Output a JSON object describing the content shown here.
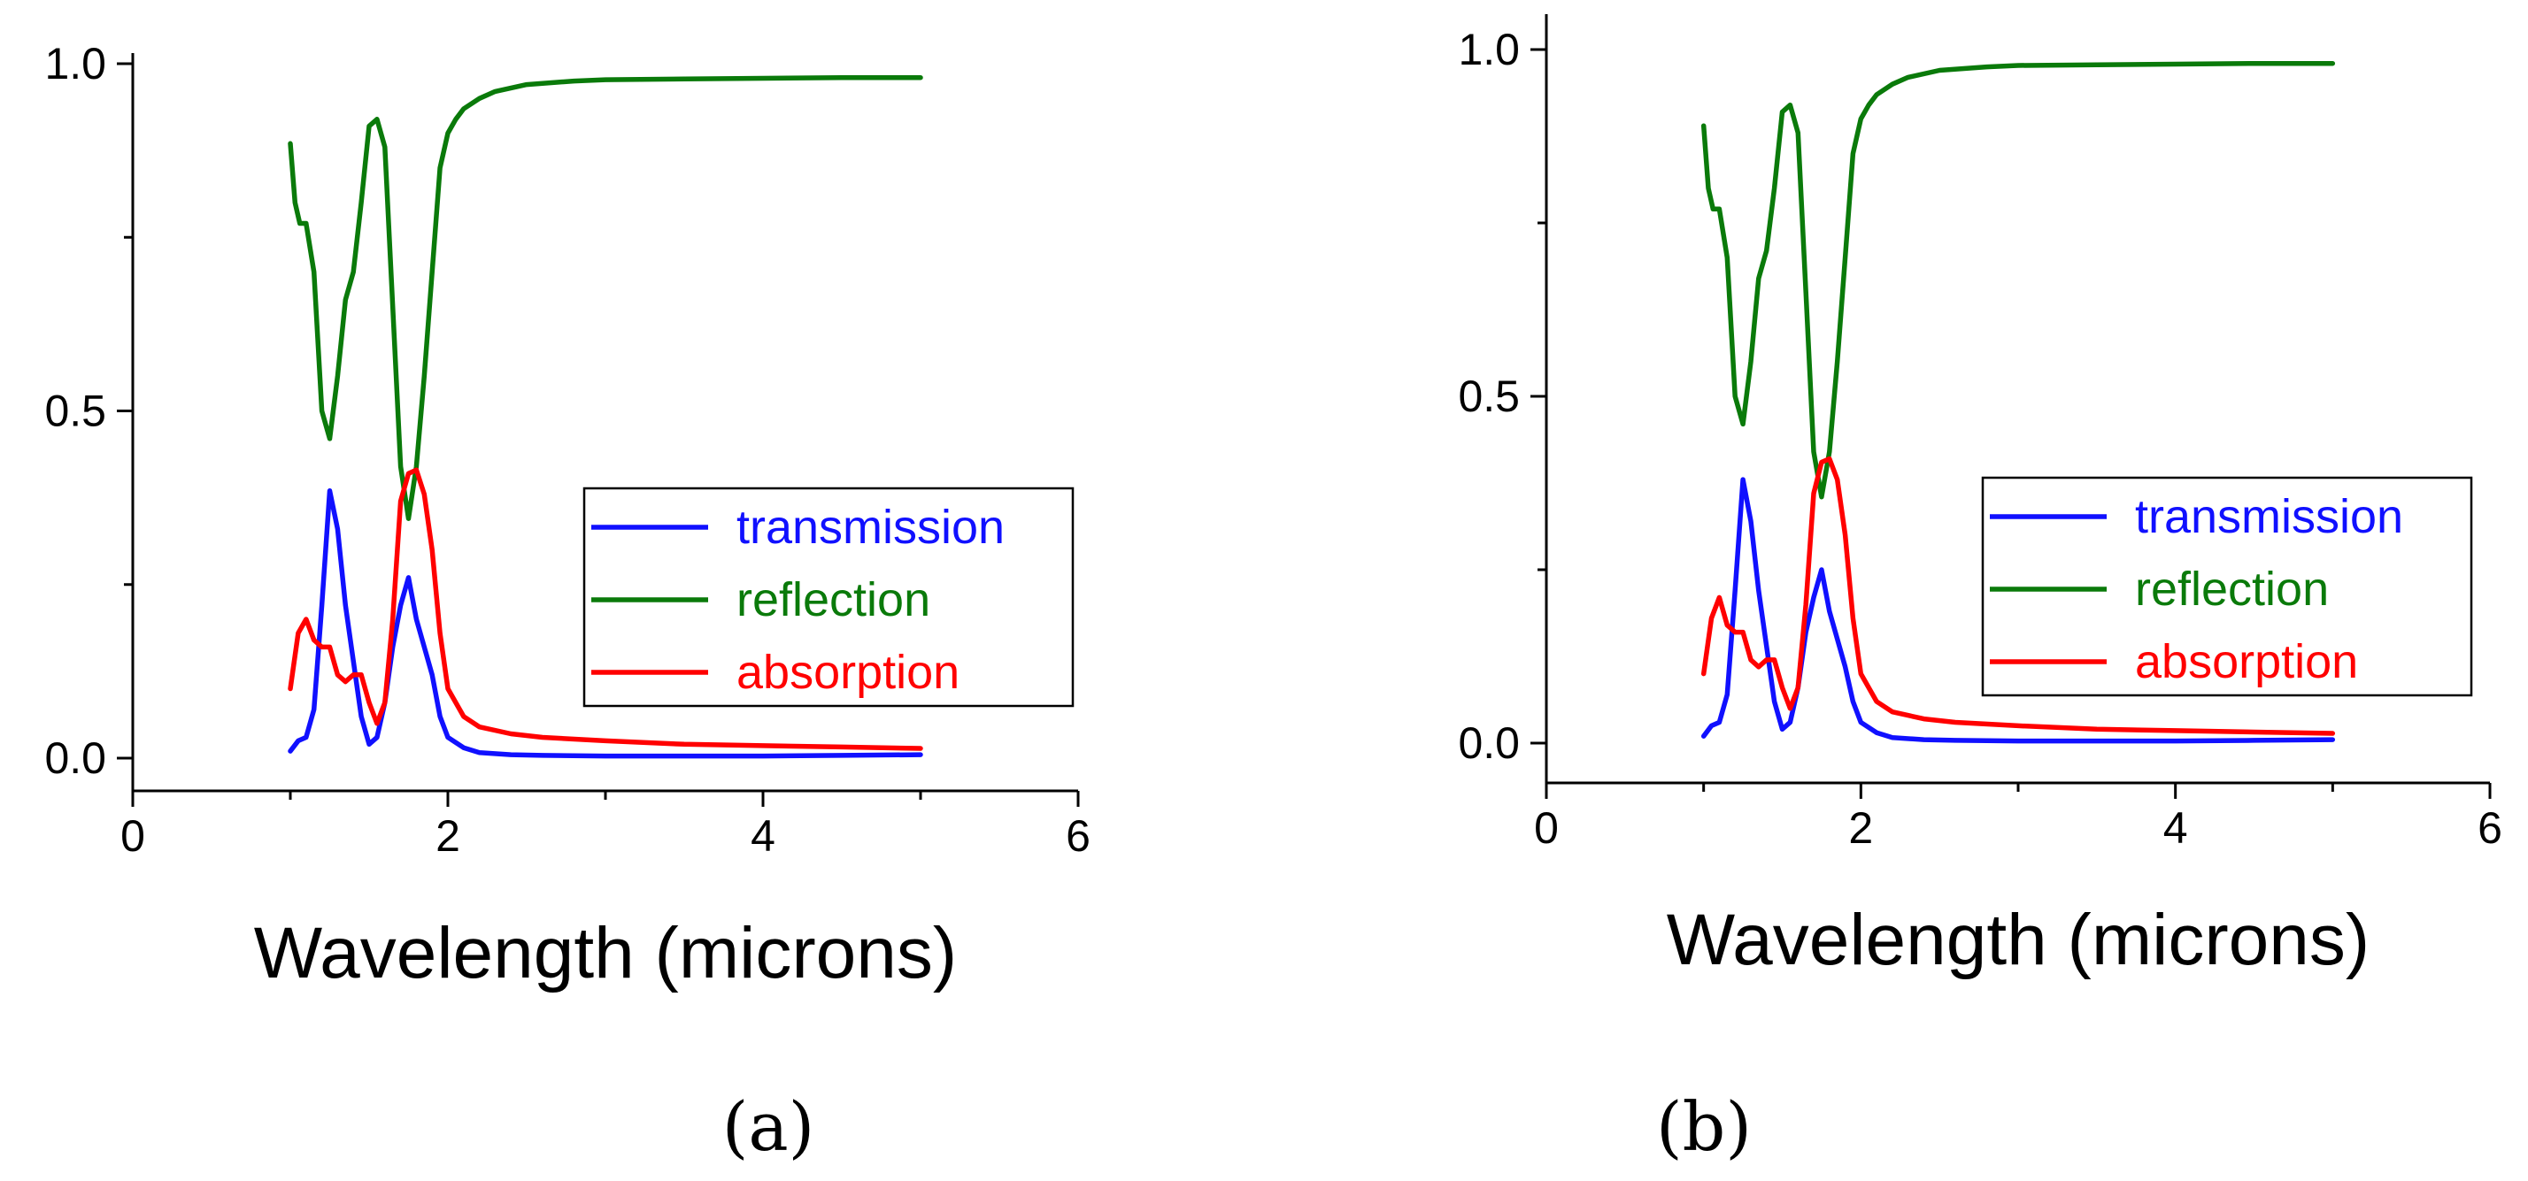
{
  "colors": {
    "transmission": "#1010ff",
    "reflection": "#0a7a0a",
    "absorption": "#ff0000",
    "axis": "#000000"
  },
  "chart_data": [
    {
      "type": "line",
      "panel_label": "(a)",
      "xlabel": "Wavelength (microns)",
      "ylabel": "",
      "xlim": [
        0,
        6
      ],
      "ylim": [
        -0.05,
        1.05
      ],
      "xticks": [
        0,
        2,
        4,
        6
      ],
      "xtick_labels": [
        "0",
        "2",
        "4",
        "6"
      ],
      "yticks": [
        0.0,
        0.5,
        1.0
      ],
      "ytick_labels": [
        "0.0",
        "0.5",
        "1.0"
      ],
      "grid": false,
      "legend_position": "right-middle",
      "series": [
        {
          "name": "transmission",
          "color": "#1010ff",
          "x": [
            1.0,
            1.05,
            1.1,
            1.15,
            1.2,
            1.25,
            1.3,
            1.35,
            1.4,
            1.45,
            1.5,
            1.55,
            1.6,
            1.65,
            1.7,
            1.75,
            1.8,
            1.85,
            1.9,
            1.95,
            2.0,
            2.1,
            2.2,
            2.4,
            2.6,
            3.0,
            3.5,
            4.0,
            4.5,
            5.0
          ],
          "y": [
            0.01,
            0.025,
            0.03,
            0.07,
            0.22,
            0.385,
            0.33,
            0.22,
            0.14,
            0.06,
            0.02,
            0.03,
            0.08,
            0.16,
            0.22,
            0.26,
            0.2,
            0.16,
            0.12,
            0.06,
            0.03,
            0.015,
            0.008,
            0.005,
            0.004,
            0.003,
            0.003,
            0.003,
            0.004,
            0.005
          ]
        },
        {
          "name": "reflection",
          "color": "#0a7a0a",
          "x": [
            1.0,
            1.03,
            1.06,
            1.1,
            1.15,
            1.2,
            1.25,
            1.3,
            1.35,
            1.4,
            1.45,
            1.5,
            1.55,
            1.6,
            1.65,
            1.7,
            1.75,
            1.8,
            1.85,
            1.9,
            1.95,
            2.0,
            2.05,
            2.1,
            2.2,
            2.3,
            2.5,
            2.8,
            3.0,
            3.5,
            4.0,
            4.5,
            5.0
          ],
          "y": [
            0.885,
            0.8,
            0.77,
            0.77,
            0.7,
            0.5,
            0.46,
            0.55,
            0.66,
            0.7,
            0.8,
            0.91,
            0.92,
            0.88,
            0.65,
            0.42,
            0.345,
            0.42,
            0.55,
            0.7,
            0.85,
            0.9,
            0.92,
            0.935,
            0.95,
            0.96,
            0.97,
            0.975,
            0.977,
            0.978,
            0.979,
            0.98,
            0.98
          ]
        },
        {
          "name": "absorption",
          "color": "#ff0000",
          "x": [
            1.0,
            1.05,
            1.1,
            1.15,
            1.2,
            1.25,
            1.3,
            1.35,
            1.4,
            1.45,
            1.5,
            1.55,
            1.6,
            1.65,
            1.7,
            1.75,
            1.8,
            1.85,
            1.9,
            1.95,
            2.0,
            2.1,
            2.2,
            2.4,
            2.6,
            3.0,
            3.5,
            4.0,
            4.5,
            5.0
          ],
          "y": [
            0.1,
            0.18,
            0.2,
            0.17,
            0.16,
            0.16,
            0.12,
            0.11,
            0.12,
            0.12,
            0.08,
            0.05,
            0.08,
            0.2,
            0.37,
            0.41,
            0.415,
            0.38,
            0.3,
            0.18,
            0.1,
            0.06,
            0.045,
            0.035,
            0.03,
            0.025,
            0.02,
            0.018,
            0.016,
            0.014
          ]
        }
      ]
    },
    {
      "type": "line",
      "panel_label": "(b)",
      "xlabel": "Wavelength (microns)",
      "ylabel": "",
      "xlim": [
        0,
        6
      ],
      "ylim": [
        -0.05,
        1.05
      ],
      "xticks": [
        0,
        2,
        4,
        6
      ],
      "xtick_labels": [
        "0",
        "2",
        "4",
        "6"
      ],
      "yticks": [
        0.0,
        0.5,
        1.0
      ],
      "ytick_labels": [
        "0.0",
        "0.5",
        "1.0"
      ],
      "grid": false,
      "legend_position": "right-middle",
      "series": [
        {
          "name": "transmission",
          "color": "#1010ff",
          "x": [
            1.0,
            1.05,
            1.1,
            1.15,
            1.2,
            1.25,
            1.3,
            1.35,
            1.4,
            1.45,
            1.5,
            1.55,
            1.6,
            1.65,
            1.7,
            1.75,
            1.8,
            1.85,
            1.9,
            1.95,
            2.0,
            2.1,
            2.2,
            2.4,
            2.6,
            3.0,
            3.5,
            4.0,
            4.5,
            5.0
          ],
          "y": [
            0.01,
            0.025,
            0.03,
            0.07,
            0.22,
            0.38,
            0.32,
            0.22,
            0.14,
            0.06,
            0.02,
            0.03,
            0.08,
            0.16,
            0.21,
            0.25,
            0.19,
            0.15,
            0.11,
            0.06,
            0.03,
            0.015,
            0.008,
            0.005,
            0.004,
            0.003,
            0.003,
            0.003,
            0.004,
            0.005
          ]
        },
        {
          "name": "reflection",
          "color": "#0a7a0a",
          "x": [
            1.0,
            1.03,
            1.06,
            1.1,
            1.15,
            1.2,
            1.25,
            1.3,
            1.35,
            1.4,
            1.45,
            1.5,
            1.55,
            1.6,
            1.65,
            1.7,
            1.75,
            1.8,
            1.85,
            1.9,
            1.95,
            2.0,
            2.05,
            2.1,
            2.2,
            2.3,
            2.5,
            2.8,
            3.0,
            3.5,
            4.0,
            4.5,
            5.0
          ],
          "y": [
            0.89,
            0.8,
            0.77,
            0.77,
            0.7,
            0.5,
            0.46,
            0.55,
            0.67,
            0.71,
            0.8,
            0.91,
            0.92,
            0.88,
            0.65,
            0.42,
            0.355,
            0.42,
            0.55,
            0.7,
            0.85,
            0.9,
            0.92,
            0.935,
            0.95,
            0.96,
            0.97,
            0.975,
            0.977,
            0.978,
            0.979,
            0.98,
            0.98
          ]
        },
        {
          "name": "absorption",
          "color": "#ff0000",
          "x": [
            1.0,
            1.05,
            1.1,
            1.15,
            1.2,
            1.25,
            1.3,
            1.35,
            1.4,
            1.45,
            1.5,
            1.55,
            1.6,
            1.65,
            1.7,
            1.75,
            1.8,
            1.85,
            1.9,
            1.95,
            2.0,
            2.1,
            2.2,
            2.4,
            2.6,
            3.0,
            3.5,
            4.0,
            4.5,
            5.0
          ],
          "y": [
            0.1,
            0.18,
            0.21,
            0.17,
            0.16,
            0.16,
            0.12,
            0.11,
            0.12,
            0.12,
            0.08,
            0.05,
            0.08,
            0.2,
            0.36,
            0.405,
            0.41,
            0.38,
            0.3,
            0.18,
            0.1,
            0.06,
            0.045,
            0.035,
            0.03,
            0.025,
            0.02,
            0.018,
            0.016,
            0.014
          ]
        }
      ]
    }
  ]
}
